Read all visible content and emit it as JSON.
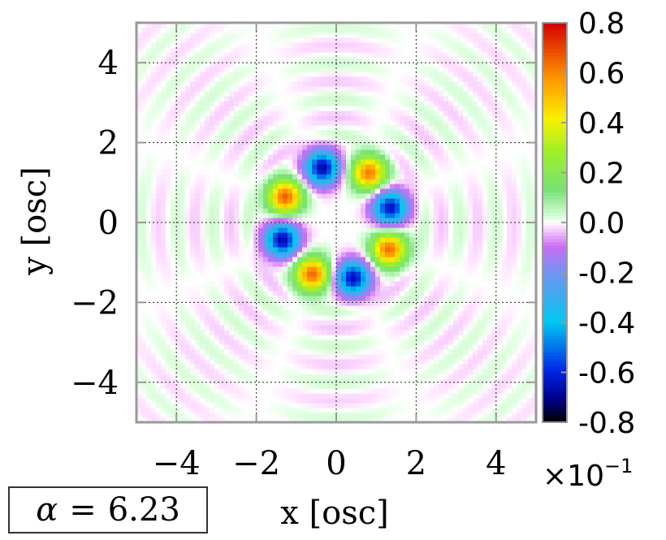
{
  "chart_data": {
    "type": "heatmap",
    "title": "",
    "xlabel": "x [osc]",
    "ylabel": "y [osc]",
    "xlim": [
      -5,
      5
    ],
    "ylim": [
      -5,
      5
    ],
    "x_ticks": [
      "−4",
      "−2",
      "0",
      "2",
      "4"
    ],
    "x_tick_values": [
      -4,
      -2,
      0,
      2,
      4
    ],
    "y_ticks": [
      "4",
      "2",
      "0",
      "−2",
      "−4"
    ],
    "y_tick_values": [
      4,
      2,
      0,
      -2,
      -4
    ],
    "grid": true,
    "colorbar": {
      "range": [
        -0.8,
        0.8
      ],
      "tick_labels": [
        "0.8",
        "0.6",
        "0.4",
        "0.2",
        "0.0",
        "-0.2",
        "-0.4",
        "-0.6",
        "-0.8"
      ],
      "tick_values": [
        0.8,
        0.6,
        0.4,
        0.2,
        0.0,
        -0.2,
        -0.4,
        -0.6,
        -0.8
      ],
      "multiplier": "×10",
      "multiplier_exponent": "−1"
    },
    "lobes": [
      {
        "x": 1.35,
        "y": 0.38,
        "value": -0.65
      },
      {
        "x": 0.82,
        "y": 1.25,
        "value": 0.62
      },
      {
        "x": -0.35,
        "y": 1.38,
        "value": -0.68
      },
      {
        "x": -1.28,
        "y": 0.65,
        "value": 0.66
      },
      {
        "x": -1.35,
        "y": -0.42,
        "value": -0.68
      },
      {
        "x": -0.6,
        "y": -1.28,
        "value": 0.65
      },
      {
        "x": 0.42,
        "y": -1.38,
        "value": -0.66
      },
      {
        "x": 1.32,
        "y": -0.66,
        "value": 0.64
      }
    ],
    "ring_pattern": {
      "spacing": 0.9,
      "amplitude": 0.04
    }
  },
  "annotation": {
    "symbol": "α",
    "equals": "=",
    "value": "6.23"
  }
}
